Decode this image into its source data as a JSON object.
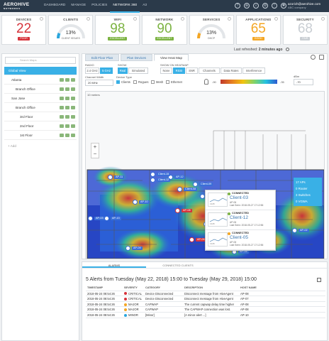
{
  "topnav": {
    "logo_main": "AEROHIVE",
    "logo_sub": "NETWORKS",
    "items": [
      {
        "label": "DASHBOARD"
      },
      {
        "label": "MANAGE"
      },
      {
        "label": "POLICIES"
      },
      {
        "label": "NETWORK 360"
      },
      {
        "label": "A3"
      }
    ],
    "active_index": 3,
    "user_email": "azorich@aerohive.com",
    "user_company": "ABC company"
  },
  "cards": [
    {
      "title": "DEVICES",
      "value": "22",
      "badge": "POOR",
      "color": "#d6333b",
      "kind": "number"
    },
    {
      "title": "CLIENTS",
      "value": "13%",
      "sub": "CLIENT ISSUES",
      "color": "#2aa6dd",
      "kind": "gauge",
      "fraction": 0.13
    },
    {
      "title": "WIFI",
      "value": "98",
      "badge": "EXCELLENT",
      "color": "#7cb342",
      "kind": "number"
    },
    {
      "title": "NETWORK",
      "value": "90",
      "badge": "EXCELLENT",
      "color": "#7cb342",
      "kind": "number"
    },
    {
      "title": "SERVICES",
      "value": "13%",
      "sub": "DHCP",
      "color": "#f4a623",
      "kind": "gauge",
      "fraction": 0.13
    },
    {
      "title": "APPLICATIONS",
      "value": "65",
      "badge": "GOOD",
      "color": "#f4a623",
      "kind": "number"
    },
    {
      "title": "SECURITY",
      "value": "68",
      "badge": "FAIR",
      "color": "#c9ced3",
      "kind": "number"
    }
  ],
  "refresh": {
    "label": "Last refreshed:",
    "value": "2 minutes ago"
  },
  "tree": {
    "search_placeholder": "Search Maps",
    "nodes": [
      {
        "label": "Global View",
        "selected": true
      },
      {
        "label": "Atlanta"
      },
      {
        "label": "Branch Office"
      },
      {
        "label": "San Jose"
      },
      {
        "label": "Branch Office"
      },
      {
        "label": "3rd Floor"
      },
      {
        "label": "2nd Floor"
      },
      {
        "label": "1st Floor"
      }
    ],
    "add_label": "Add"
  },
  "main": {
    "tabs": [
      {
        "label": "Edit Floor Plan"
      },
      {
        "label": "Plan Devices"
      },
      {
        "label": "View Heat Map"
      }
    ],
    "active_tab": 2,
    "radio_label": "RADIO",
    "radio_options": [
      "2.4 GHz",
      "5 GHz"
    ],
    "radio_active": 1,
    "show_label": "SHOW",
    "show_options": [
      "Real",
      "Simulated"
    ],
    "show_active": 0,
    "heatmap_label": "SHOW ON HEATMAP",
    "heatmap_options": [
      "None",
      "RSSI",
      "SNR",
      "Channels",
      "Data Rates",
      "Interference"
    ],
    "heatmap_active": 1,
    "channel_width_label": "Channel Width",
    "channel_width_value": "20 MHz",
    "device_type_label": "Device Type",
    "device_types": [
      {
        "label": "Clients",
        "checked": true
      },
      {
        "label": "Rogues",
        "checked": false
      },
      {
        "label": "Mesh",
        "checked": false
      },
      {
        "label": "Ethernet",
        "checked": false
      }
    ],
    "legend_low": "-90",
    "legend_high": "-35",
    "dbm_label": "dBm",
    "dbm_value": "-70",
    "scale_label": "10 meters",
    "ap_counts": [
      "17 APs",
      "0 Router",
      "3 Switches",
      "0 VGWA"
    ]
  },
  "map_labels": [
    {
      "label": "AP-01",
      "color": "#3a6fd8"
    },
    {
      "label": "AP-11",
      "color": "#3a6fd8"
    },
    {
      "label": "AP-03",
      "color": "#3a6fd8"
    },
    {
      "label": "AP-12",
      "color": "#3a6fd8"
    },
    {
      "label": "AP-10",
      "color": "#3a6fd8"
    },
    {
      "label": "AP-13",
      "color": "#3a6fd8"
    },
    {
      "label": "AP-04",
      "color": "#3a6fd8"
    },
    {
      "label": "AP-09",
      "color": "#3a6fd8"
    },
    {
      "label": "AP-08",
      "color": "#d6333b"
    },
    {
      "label": "AP-07",
      "color": "#3a6fd8"
    },
    {
      "label": "AP-05",
      "color": "#3a6fd8"
    },
    {
      "label": "AP-06",
      "color": "#d6333b"
    },
    {
      "label": "AP-02",
      "color": "#3a6fd8"
    },
    {
      "label": "AP-14",
      "color": "#3a6fd8"
    },
    {
      "label": "Client-15",
      "color": "#3a6fd8"
    },
    {
      "label": "Client-12",
      "color": "#3a6fd8"
    },
    {
      "label": "Client-09",
      "color": "#3a6fd8"
    },
    {
      "label": "Client-03",
      "color": "#3a6fd8"
    },
    {
      "label": "Client-08",
      "color": "#3a6fd8"
    },
    {
      "label": "Client-05",
      "color": "#3a6fd8"
    }
  ],
  "popup": [
    {
      "status": "CONNECTED",
      "name": "Client-03",
      "ap": "AP-06",
      "seen": "Last Seen: 2018-05-27 17:12:56",
      "dot": "#7cb342"
    },
    {
      "status": "CONNECTED",
      "name": "Client-12",
      "ap": "AP-06",
      "seen": "Last Seen: 2018-05-27 17:12:56",
      "dot": "#7cb342"
    },
    {
      "status": "CONNECTED",
      "name": "Client-05",
      "ap": "AP-06",
      "seen": "Last Seen: 2018-05-27 17:12:56",
      "dot": "#f4a623"
    }
  ],
  "popup_axis_label": "1345",
  "bottom": {
    "tabs": [
      {
        "label": "ALARMS"
      },
      {
        "label": "CONNECTED CLIENTS"
      }
    ],
    "active_tab": 0,
    "title": "5 Alerts from Tuesday (May 22, 2018) 15:00 to Tuesday (May 29, 2018) 15:00",
    "columns": [
      "TIMESTAMP",
      "SEVERITY",
      "CATEGORY",
      "DESCRIPTION",
      "HOST NAME"
    ],
    "rows": [
      {
        "ts": "2018-05-24 08:54:26",
        "sev": "CRITICAL",
        "sevColor": "#d6333b",
        "cat": "Device Disconnected",
        "desc": "Disconnect message from HiveAgent",
        "host": "AP-08"
      },
      {
        "ts": "2018-05-24 08:54:26",
        "sev": "CRITICAL",
        "sevColor": "#d6333b",
        "cat": "Device Disconnected",
        "desc": "Disconnect message from HiveAgent",
        "host": "AP-07"
      },
      {
        "ts": "2018-05-24 08:54:26",
        "sev": "MAJOR",
        "sevColor": "#f4a623",
        "cat": "CAPWAP",
        "desc": "The current capwap delay time higher",
        "host": "AP-08"
      },
      {
        "ts": "2018-05-24 08:54:26",
        "sev": "MAJOR",
        "sevColor": "#f4a623",
        "cat": "CAPWAP",
        "desc": "The CAPWAP connection was lost.",
        "host": "AP-08"
      },
      {
        "ts": "2018-05-24 08:54:26",
        "sev": "MINOR",
        "sevColor": "#2aa6dd",
        "cat": "[Minor]",
        "desc": "[A minor alert ...]",
        "host": "AP-10"
      }
    ]
  }
}
